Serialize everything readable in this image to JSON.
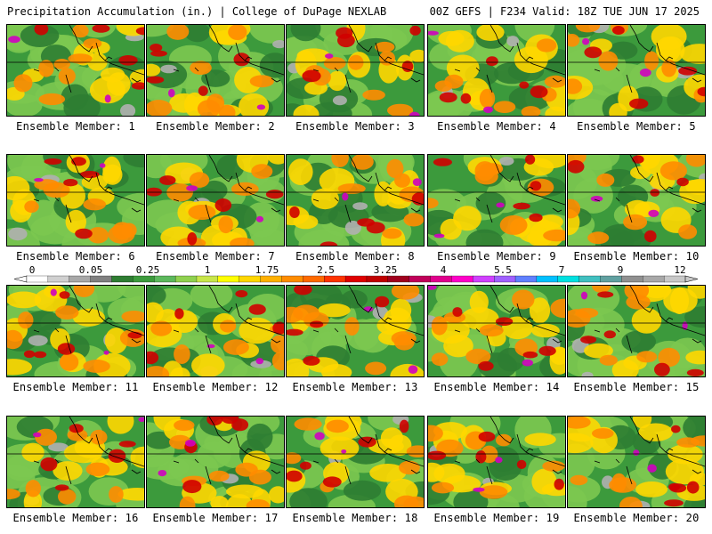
{
  "header": {
    "title_left": "Precipitation Accumulation (in.) | College of DuPage NEXLAB",
    "title_right": "00Z GEFS | F234 Valid: 18Z TUE JUN 17 2025"
  },
  "members": [
    "Ensemble Member: 1",
    "Ensemble Member: 2",
    "Ensemble Member: 3",
    "Ensemble Member: 4",
    "Ensemble Member: 5",
    "Ensemble Member: 6",
    "Ensemble Member: 7",
    "Ensemble Member: 8",
    "Ensemble Member: 9",
    "Ensemble Member: 10",
    "Ensemble Member: 11",
    "Ensemble Member: 12",
    "Ensemble Member: 13",
    "Ensemble Member: 14",
    "Ensemble Member: 15",
    "Ensemble Member: 16",
    "Ensemble Member: 17",
    "Ensemble Member: 18",
    "Ensemble Member: 19",
    "Ensemble Member: 20"
  ],
  "legend": {
    "labels": [
      "0",
      "0.05",
      "0.25",
      "1",
      "1.75",
      "2.5",
      "3.25",
      "4",
      "5.5",
      "7",
      "9",
      "12"
    ],
    "colors": [
      "#ffffff",
      "#d0d0d0",
      "#a8a8a8",
      "#808080",
      "#2e7d32",
      "#3c9a3c",
      "#5cb85c",
      "#8fd14f",
      "#c8e64a",
      "#ffff00",
      "#ffd700",
      "#ffb000",
      "#ff8c00",
      "#ff6a00",
      "#ff3300",
      "#e00000",
      "#c00000",
      "#a0001e",
      "#c0005a",
      "#e0008c",
      "#ff00c8",
      "#d040ff",
      "#a060ff",
      "#6080ff",
      "#00c0ff",
      "#00e0e0",
      "#40c0c0",
      "#60a0a0",
      "#909090",
      "#a8a8a8",
      "#c8c8c8"
    ],
    "colors_note_ignore": ""
  },
  "map_style": {
    "background": "#3c9a3c",
    "light_green": "#7cc850",
    "dark_green": "#2e7d32",
    "yellow": "#ffd700",
    "orange": "#ff8c00",
    "red": "#d00000",
    "magenta": "#d000c0",
    "gray": "#b0b0b0"
  }
}
